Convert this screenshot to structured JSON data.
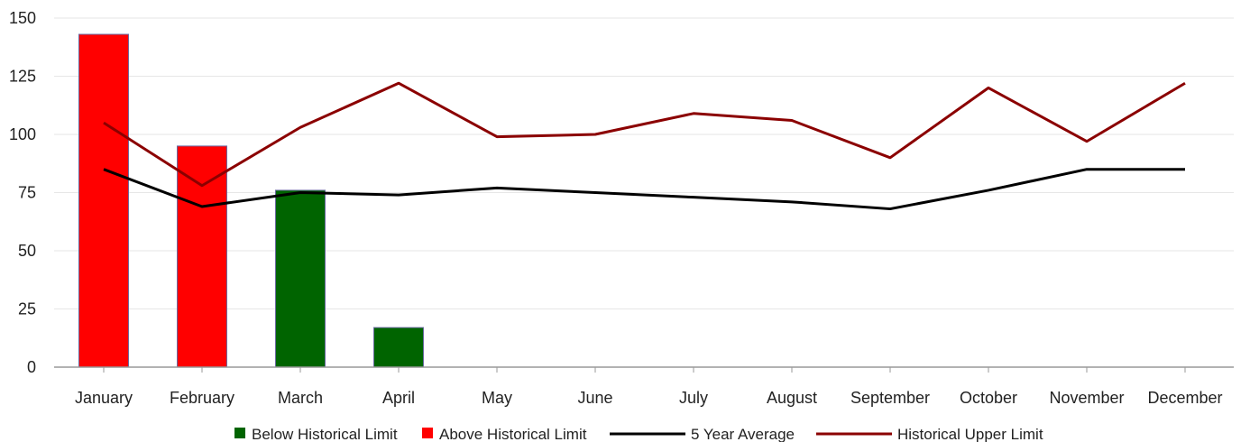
{
  "chart_data": {
    "type": "bar",
    "title": "",
    "xlabel": "",
    "ylabel": "",
    "ylim": [
      0,
      150
    ],
    "yticks": [
      0,
      25,
      50,
      75,
      100,
      125,
      150
    ],
    "grid": true,
    "legend_position": "bottom",
    "categories": [
      "January",
      "February",
      "March",
      "April",
      "May",
      "June",
      "July",
      "August",
      "September",
      "October",
      "November",
      "December"
    ],
    "bars": [
      {
        "category": "January",
        "value": 143,
        "status": "above"
      },
      {
        "category": "February",
        "value": 95,
        "status": "above"
      },
      {
        "category": "March",
        "value": 76,
        "status": "below"
      },
      {
        "category": "April",
        "value": 17,
        "status": "below"
      }
    ],
    "series": [
      {
        "name": "5 Year Average",
        "type": "line",
        "color": "#000000",
        "values": [
          85,
          69,
          75,
          74,
          77,
          75,
          73,
          71,
          68,
          76,
          85,
          85
        ]
      },
      {
        "name": "Historical Upper Limit",
        "type": "line",
        "color": "#8b0000",
        "values": [
          105,
          78,
          103,
          122,
          99,
          100,
          109,
          106,
          90,
          120,
          97,
          122
        ]
      }
    ],
    "legend": [
      {
        "label": "Below Historical Limit",
        "kind": "box",
        "color": "#006400"
      },
      {
        "label": "Above Historical Limit",
        "kind": "box",
        "color": "#ff0000"
      },
      {
        "label": "5 Year Average",
        "kind": "line",
        "color": "#000000"
      },
      {
        "label": "Historical Upper Limit",
        "kind": "line",
        "color": "#8b0000"
      }
    ],
    "colors": {
      "above": "#ff0000",
      "below": "#006400",
      "bar_stroke": "#6a6aa0"
    }
  }
}
